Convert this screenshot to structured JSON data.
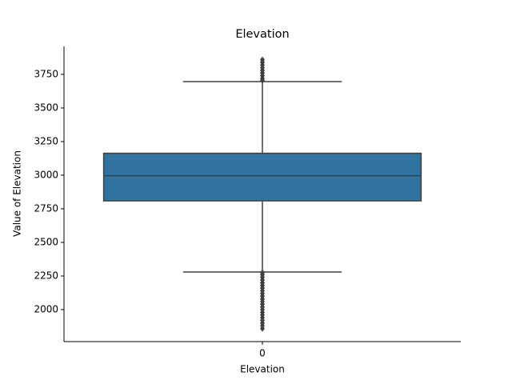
{
  "chart_data": {
    "type": "box",
    "title": "Elevation",
    "x_label": "Elevation",
    "y_label": "Value of Elevation",
    "categories": [
      "0"
    ],
    "boxes": [
      {
        "whislo": 2280,
        "q1": 2809,
        "med": 2996,
        "q3": 3163,
        "whishi": 3696,
        "fliers": [
          1859,
          1880,
          1900,
          1920,
          1940,
          1960,
          1980,
          2000,
          2020,
          2040,
          2060,
          2080,
          2100,
          2120,
          2140,
          2160,
          2180,
          2200,
          2220,
          2240,
          2260,
          2275,
          3705,
          3720,
          3740,
          3760,
          3780,
          3800,
          3820,
          3840,
          3858
        ]
      }
    ],
    "color": "#3274a1",
    "ylim": [
      1762,
      3958
    ],
    "yticks": [
      2000,
      2250,
      2500,
      2750,
      3000,
      3250,
      3500,
      3750
    ]
  }
}
